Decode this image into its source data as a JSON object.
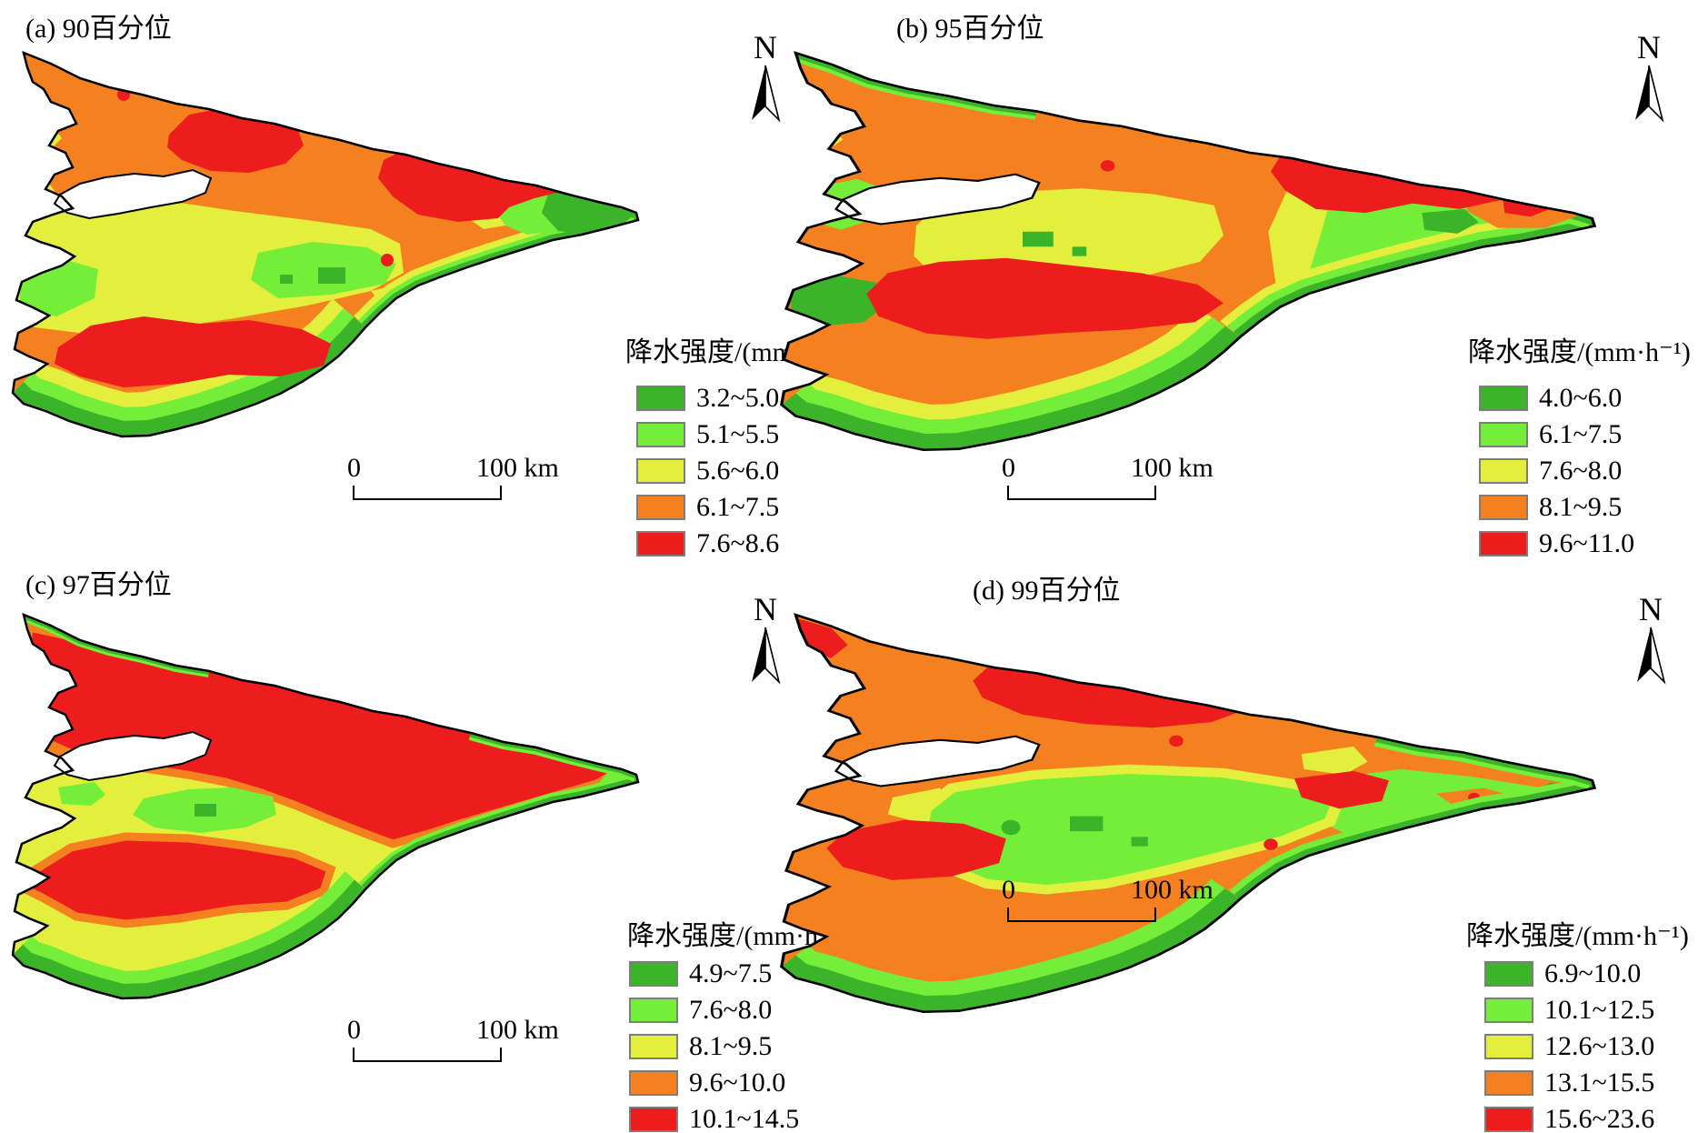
{
  "legend": {
    "title": "降水强度/(mm·h⁻¹)"
  },
  "scalebar": {
    "zero": "0",
    "label": "100 km"
  },
  "north_label": "N",
  "colors": {
    "class1": "#3CB42A",
    "class2": "#74EE38",
    "class3": "#E3EF3C",
    "class4": "#F5801F",
    "class5": "#ED1C1D",
    "outline": "#000000"
  },
  "panels": [
    {
      "title": "(a) 90百分位",
      "classes": [
        "3.2~5.0",
        "5.1~5.5",
        "5.6~6.0",
        "6.1~7.5",
        "7.6~8.6"
      ]
    },
    {
      "title": "(b) 95百分位",
      "classes": [
        "4.0~6.0",
        "6.1~7.5",
        "7.6~8.0",
        "8.1~9.5",
        "9.6~11.0"
      ]
    },
    {
      "title": "(c) 97百分位",
      "classes": [
        "4.9~7.5",
        "7.6~8.0",
        "8.1~9.5",
        "9.6~10.0",
        "10.1~14.5"
      ]
    },
    {
      "title": "(d) 99百分位",
      "classes": [
        "6.9~10.0",
        "10.1~12.5",
        "12.6~13.0",
        "13.1~15.5",
        "15.6~23.6"
      ]
    }
  ]
}
